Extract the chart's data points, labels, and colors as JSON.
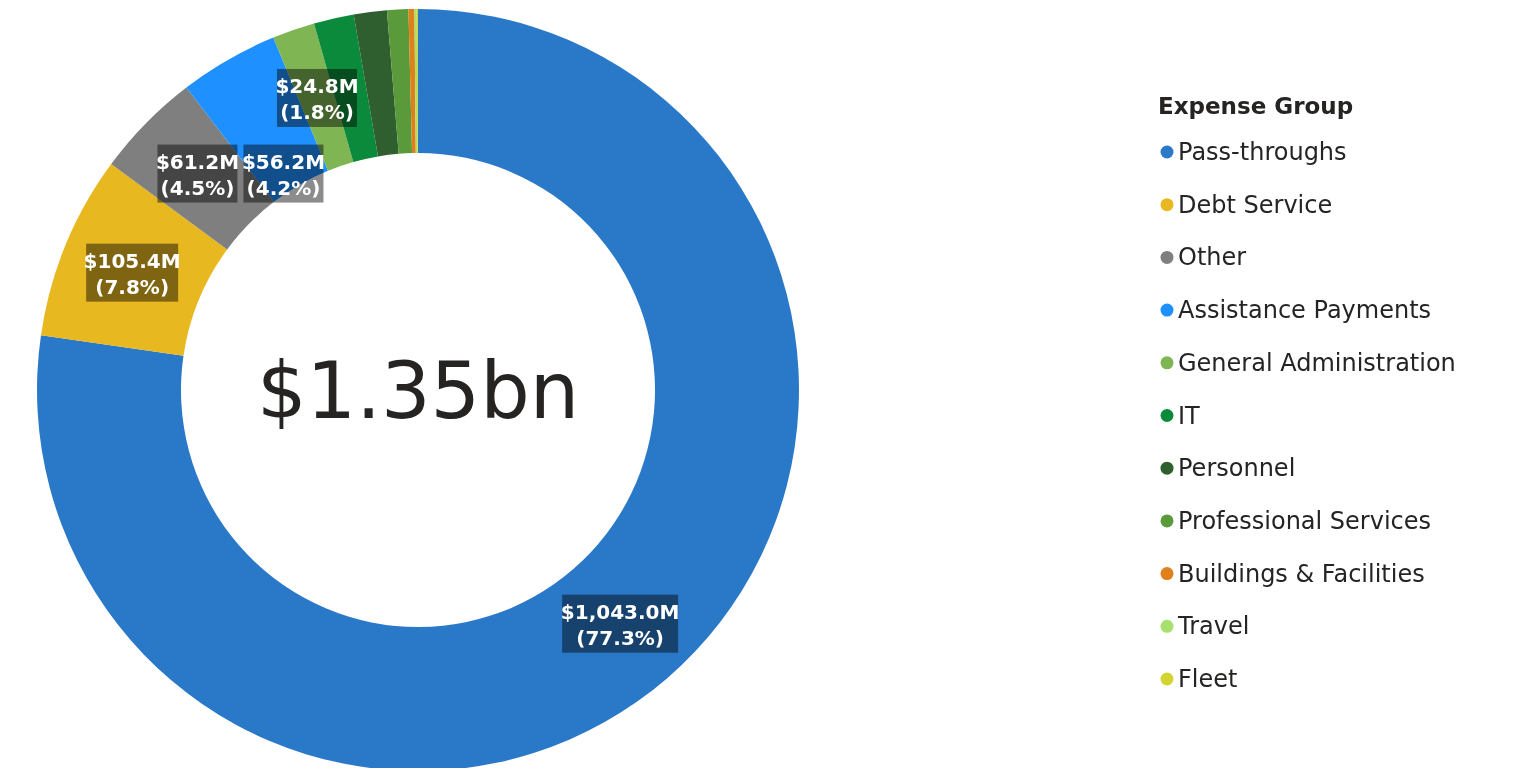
{
  "chart_data": {
    "type": "donut",
    "legend_title": "Expense Group",
    "legend": "right",
    "annotations": [
      "$1.35bn"
    ],
    "categories": [
      "Pass-throughs",
      "Debt Service",
      "Other",
      "Assistance Payments",
      "General Administration",
      "IT",
      "Personnel",
      "Professional Services",
      "Buildings & Facilities",
      "Travel",
      "Fleet"
    ],
    "values": [
      77.3,
      7.8,
      4.5,
      4.2,
      1.8,
      1.7,
      1.4,
      0.9,
      0.25,
      0.1,
      0.05
    ],
    "colors": [
      "#2a78c8",
      "#e8b820",
      "#7f7f7f",
      "#1e90ff",
      "#7fb552",
      "#0a8a3a",
      "#2f5e2f",
      "#5a9a3a",
      "#e0801a",
      "#a8e070",
      "#d4d430"
    ],
    "value_labels": [
      "$1,043.0M\n(77.3%)",
      "$105.4M\n(7.8%)",
      "$61.2M\n(4.5%)",
      "$56.2M\n(4.2%)",
      "$24.8M\n(1.8%)",
      null,
      null,
      null,
      null,
      null,
      null
    ]
  }
}
